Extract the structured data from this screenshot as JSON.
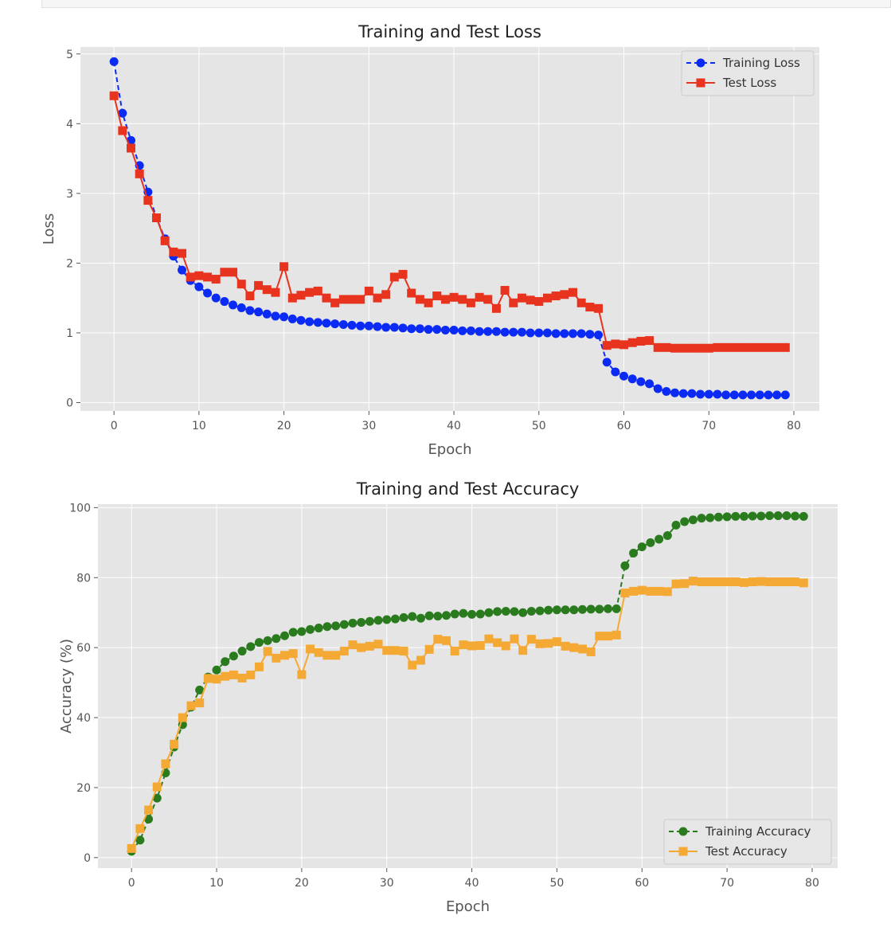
{
  "charts": [
    {
      "type": "line",
      "title": "Training and Test Loss",
      "xlabel": "Epoch",
      "ylabel": "Loss",
      "xlim": [
        -3.95,
        83
      ],
      "ylim": [
        -0.12,
        5.1
      ],
      "xticks": [
        0,
        10,
        20,
        30,
        40,
        50,
        60,
        70,
        80
      ],
      "yticks": [
        0,
        1,
        2,
        3,
        4,
        5
      ],
      "grid": true,
      "legend": "top-right",
      "series": [
        {
          "name": "Training Loss",
          "color": "#0b2bf5",
          "marker": "circle",
          "linestyle": "dashed",
          "values": [
            4.89,
            4.15,
            3.76,
            3.4,
            3.02,
            2.65,
            2.35,
            2.1,
            1.9,
            1.75,
            1.66,
            1.57,
            1.5,
            1.45,
            1.4,
            1.36,
            1.32,
            1.3,
            1.27,
            1.24,
            1.23,
            1.2,
            1.18,
            1.16,
            1.15,
            1.14,
            1.13,
            1.12,
            1.11,
            1.1,
            1.1,
            1.09,
            1.08,
            1.08,
            1.07,
            1.06,
            1.06,
            1.05,
            1.05,
            1.04,
            1.04,
            1.03,
            1.03,
            1.02,
            1.02,
            1.02,
            1.01,
            1.01,
            1.01,
            1.0,
            1.0,
            1.0,
            0.99,
            0.99,
            0.99,
            0.99,
            0.98,
            0.97,
            0.58,
            0.44,
            0.38,
            0.34,
            0.3,
            0.27,
            0.2,
            0.16,
            0.14,
            0.13,
            0.13,
            0.12,
            0.12,
            0.12,
            0.11,
            0.11,
            0.11,
            0.11,
            0.11,
            0.11,
            0.11,
            0.11
          ]
        },
        {
          "name": "Test Loss",
          "color": "#e8331e",
          "marker": "square",
          "linestyle": "solid",
          "values": [
            4.4,
            3.9,
            3.65,
            3.28,
            2.9,
            2.65,
            2.32,
            2.16,
            2.14,
            1.8,
            1.82,
            1.8,
            1.77,
            1.87,
            1.87,
            1.7,
            1.53,
            1.68,
            1.62,
            1.58,
            1.95,
            1.5,
            1.54,
            1.58,
            1.6,
            1.5,
            1.43,
            1.48,
            1.48,
            1.48,
            1.6,
            1.5,
            1.55,
            1.8,
            1.84,
            1.57,
            1.48,
            1.43,
            1.53,
            1.48,
            1.51,
            1.48,
            1.43,
            1.51,
            1.48,
            1.35,
            1.61,
            1.43,
            1.5,
            1.47,
            1.45,
            1.5,
            1.53,
            1.55,
            1.58,
            1.43,
            1.37,
            1.35,
            0.82,
            0.84,
            0.83,
            0.86,
            0.88,
            0.89,
            0.79,
            0.79,
            0.78,
            0.78,
            0.78,
            0.78,
            0.78,
            0.79,
            0.79,
            0.79,
            0.79,
            0.79,
            0.79,
            0.79,
            0.79,
            0.79
          ]
        }
      ]
    },
    {
      "type": "line",
      "title": "Training and Test Accuracy",
      "xlabel": "Epoch",
      "ylabel": "Accuracy (%)",
      "xlim": [
        -3.95,
        83
      ],
      "ylim": [
        -3,
        101
      ],
      "xticks": [
        0,
        10,
        20,
        30,
        40,
        50,
        60,
        70,
        80
      ],
      "yticks": [
        0,
        20,
        40,
        60,
        80,
        100
      ],
      "grid": true,
      "legend": "bottom-right",
      "series": [
        {
          "name": "Training Accuracy",
          "color": "#2a7a1e",
          "marker": "circle",
          "linestyle": "dashed",
          "values": [
            1.8,
            5.0,
            11.0,
            17.0,
            24.2,
            31.6,
            38.0,
            43.0,
            47.9,
            51.6,
            53.6,
            56.0,
            57.6,
            59.0,
            60.3,
            61.5,
            62.0,
            62.6,
            63.4,
            64.4,
            64.6,
            65.2,
            65.6,
            66.0,
            66.2,
            66.6,
            67.0,
            67.2,
            67.5,
            67.8,
            68.0,
            68.2,
            68.6,
            68.9,
            68.4,
            69.1,
            69.0,
            69.2,
            69.6,
            69.8,
            69.5,
            69.6,
            70.0,
            70.3,
            70.4,
            70.3,
            70.0,
            70.4,
            70.5,
            70.7,
            70.8,
            70.8,
            70.8,
            70.9,
            71.0,
            71.0,
            71.1,
            71.1,
            83.4,
            87.0,
            88.8,
            90.0,
            91.0,
            92.0,
            95.0,
            96.0,
            96.5,
            97.0,
            97.1,
            97.3,
            97.4,
            97.5,
            97.5,
            97.6,
            97.6,
            97.7,
            97.7,
            97.7,
            97.6,
            97.5
          ]
        },
        {
          "name": "Test Accuracy",
          "color": "#f5a935",
          "marker": "square",
          "linestyle": "solid",
          "values": [
            2.6,
            8.3,
            13.6,
            20.2,
            26.8,
            32.4,
            40.0,
            43.4,
            44.2,
            51.2,
            51.0,
            51.8,
            52.2,
            51.3,
            52.2,
            54.5,
            58.9,
            57.0,
            57.8,
            58.3,
            52.3,
            59.6,
            58.6,
            57.8,
            57.8,
            59.0,
            60.8,
            60.0,
            60.4,
            61.0,
            59.2,
            59.2,
            59.0,
            55.0,
            56.4,
            59.5,
            62.4,
            62.0,
            59.0,
            60.8,
            60.5,
            60.6,
            62.5,
            61.4,
            60.5,
            62.5,
            59.2,
            62.4,
            61.1,
            61.2,
            61.7,
            60.4,
            60.0,
            59.6,
            58.8,
            63.3,
            63.3,
            63.6,
            75.6,
            76.1,
            76.4,
            76.1,
            76.1,
            76.0,
            78.2,
            78.3,
            79.0,
            78.8,
            78.8,
            78.8,
            78.8,
            78.8,
            78.6,
            78.8,
            78.9,
            78.8,
            78.8,
            78.8,
            78.8,
            78.5
          ]
        }
      ]
    }
  ]
}
